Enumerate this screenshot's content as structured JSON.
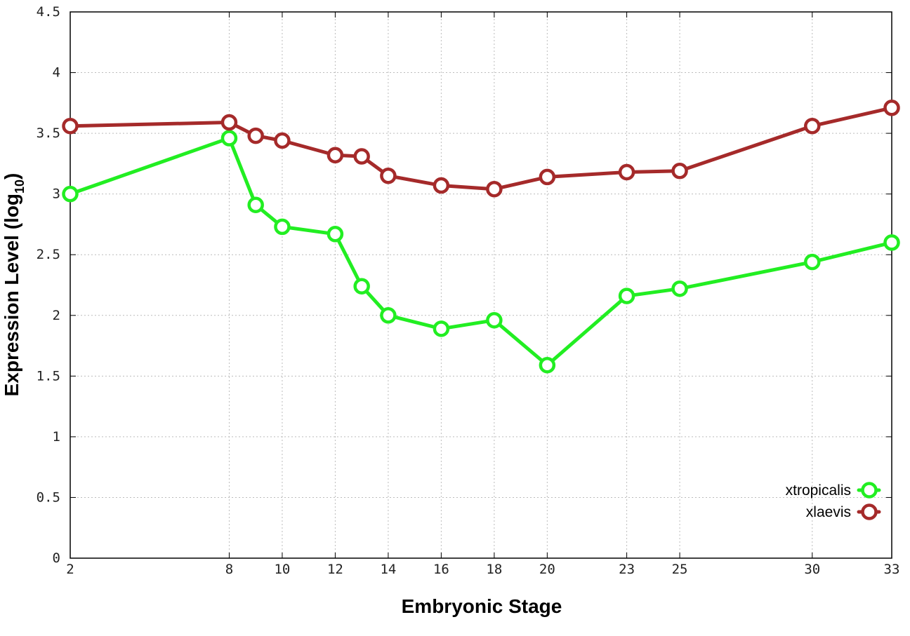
{
  "chart_data": {
    "type": "line",
    "xlabel": "Embryonic Stage",
    "ylabel": {
      "main": "Expression Level (log",
      "subscript": "10",
      "suffix": ")"
    },
    "x_ticks": [
      2,
      8,
      10,
      12,
      14,
      16,
      18,
      20,
      23,
      25,
      30,
      33
    ],
    "x_positions": [
      2,
      8,
      9,
      10,
      12,
      13,
      14,
      16,
      18,
      20,
      23,
      25,
      30,
      33
    ],
    "y_ticks": [
      "0",
      "0.5",
      "1",
      "1.5",
      "2",
      "2.5",
      "3",
      "3.5",
      "4",
      "4.5"
    ],
    "xlim": [
      2,
      33
    ],
    "ylim": [
      0,
      4.5
    ],
    "grid": true,
    "legend_position": "bottom-right",
    "series": [
      {
        "name": "xtropicalis",
        "color": "#22ee22",
        "values": [
          3.0,
          3.46,
          2.91,
          2.73,
          2.67,
          2.24,
          2.0,
          1.89,
          1.96,
          1.59,
          2.16,
          2.22,
          2.44,
          2.6
        ]
      },
      {
        "name": "xlaevis",
        "color": "#a52a2a",
        "values": [
          3.56,
          3.59,
          3.48,
          3.44,
          3.32,
          3.31,
          3.15,
          3.07,
          3.04,
          3.14,
          3.18,
          3.19,
          3.56,
          3.71
        ]
      }
    ]
  }
}
